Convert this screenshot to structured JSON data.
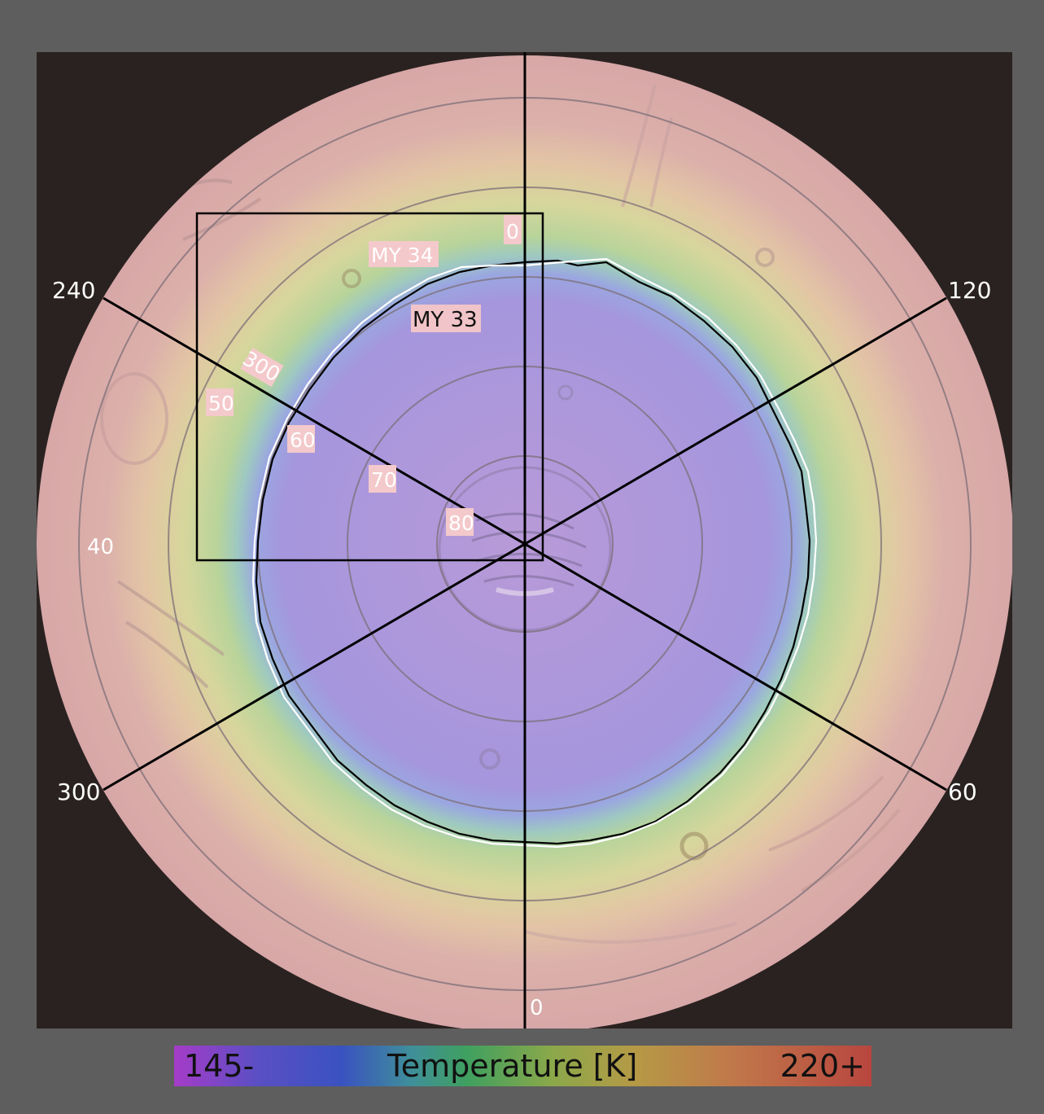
{
  "colorbar": {
    "min_label": "145-",
    "title": "Temperature [K]",
    "max_label": "220+",
    "colors": [
      "#a53cc7",
      "#3a52c0",
      "#3fa05f",
      "#b59a46",
      "#b8463f"
    ]
  },
  "map": {
    "projection": "polar-stereographic",
    "longitude_labels": [
      "0",
      "60",
      "120",
      "240",
      "300",
      "0"
    ],
    "latitude_labels": [
      "40",
      "50",
      "60",
      "70",
      "80"
    ],
    "inset_labels": [
      "0",
      "300"
    ],
    "contour_labels": {
      "my34": "MY 34",
      "my33": "MY 33"
    },
    "contour_colors": {
      "my34": "#ffffff",
      "my33": "#000000"
    }
  }
}
